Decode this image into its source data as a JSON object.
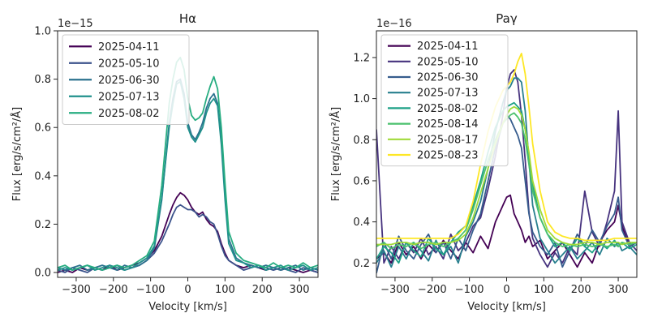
{
  "chart_data": [
    {
      "type": "line",
      "title": "Hα",
      "xlabel": "Velocity [km/s]",
      "ylabel": "Flux [erg/s/cm²/Å]",
      "y_multiplier": "1e−15",
      "xlim": [
        -350,
        350
      ],
      "ylim": [
        -0.02,
        1.0
      ],
      "xticks": [
        -300,
        -200,
        -100,
        0,
        100,
        200,
        300
      ],
      "xtick_labels": [
        "−300",
        "−200",
        "−100",
        "0",
        "100",
        "200",
        "300"
      ],
      "yticks": [
        0.0,
        0.2,
        0.4,
        0.6,
        0.8,
        1.0
      ],
      "ytick_labels": [
        "0.0",
        "0.2",
        "0.4",
        "0.6",
        "0.8",
        "1.0"
      ],
      "legend_position": "top-left",
      "grid": false,
      "x": [
        -350,
        -330,
        -310,
        -290,
        -270,
        -250,
        -230,
        -210,
        -190,
        -170,
        -150,
        -130,
        -110,
        -90,
        -70,
        -50,
        -40,
        -30,
        -20,
        -10,
        0,
        10,
        20,
        30,
        40,
        50,
        60,
        70,
        80,
        90,
        100,
        110,
        130,
        150,
        170,
        190,
        210,
        230,
        250,
        270,
        290,
        310,
        330,
        350
      ],
      "series": [
        {
          "name": "2025-04-11",
          "color": "#440154",
          "values": [
            0.0,
            0.01,
            0.0,
            0.02,
            0.01,
            0.02,
            0.01,
            0.03,
            0.01,
            0.02,
            0.03,
            0.04,
            0.06,
            0.09,
            0.15,
            0.24,
            0.28,
            0.31,
            0.33,
            0.32,
            0.3,
            0.27,
            0.25,
            0.24,
            0.25,
            0.22,
            0.2,
            0.19,
            0.17,
            0.12,
            0.08,
            0.05,
            0.03,
            0.02,
            0.03,
            0.02,
            0.01,
            0.02,
            0.01,
            0.02,
            0.01,
            0.0,
            0.01,
            0.0
          ]
        },
        {
          "name": "2025-05-10",
          "color": "#3b528b",
          "values": [
            0.01,
            0.0,
            0.02,
            0.01,
            0.0,
            0.02,
            0.01,
            0.02,
            0.03,
            0.01,
            0.02,
            0.03,
            0.05,
            0.08,
            0.13,
            0.2,
            0.24,
            0.27,
            0.28,
            0.27,
            0.26,
            0.26,
            0.25,
            0.23,
            0.24,
            0.23,
            0.21,
            0.2,
            0.16,
            0.11,
            0.07,
            0.05,
            0.03,
            0.01,
            0.02,
            0.03,
            0.02,
            0.01,
            0.02,
            0.01,
            0.0,
            0.02,
            0.01,
            0.0
          ]
        },
        {
          "name": "2025-06-30",
          "color": "#2c728e",
          "values": [
            0.02,
            0.01,
            0.02,
            0.03,
            0.01,
            0.02,
            0.03,
            0.02,
            0.01,
            0.03,
            0.02,
            0.03,
            0.05,
            0.1,
            0.3,
            0.62,
            0.72,
            0.79,
            0.8,
            0.74,
            0.62,
            0.57,
            0.55,
            0.58,
            0.62,
            0.68,
            0.72,
            0.74,
            0.7,
            0.55,
            0.32,
            0.14,
            0.06,
            0.04,
            0.03,
            0.02,
            0.03,
            0.02,
            0.01,
            0.02,
            0.03,
            0.01,
            0.02,
            0.01
          ]
        },
        {
          "name": "2025-07-13",
          "color": "#21918c",
          "values": [
            0.01,
            0.02,
            0.01,
            0.02,
            0.03,
            0.01,
            0.02,
            0.03,
            0.02,
            0.01,
            0.02,
            0.04,
            0.06,
            0.11,
            0.31,
            0.6,
            0.7,
            0.78,
            0.79,
            0.72,
            0.6,
            0.56,
            0.54,
            0.57,
            0.6,
            0.66,
            0.7,
            0.72,
            0.69,
            0.53,
            0.3,
            0.12,
            0.05,
            0.04,
            0.02,
            0.03,
            0.01,
            0.02,
            0.03,
            0.01,
            0.02,
            0.03,
            0.01,
            0.02
          ]
        },
        {
          "name": "2025-08-02",
          "color": "#27ad81",
          "values": [
            0.02,
            0.03,
            0.01,
            0.02,
            0.03,
            0.02,
            0.01,
            0.02,
            0.03,
            0.02,
            0.03,
            0.05,
            0.07,
            0.13,
            0.36,
            0.7,
            0.8,
            0.87,
            0.89,
            0.84,
            0.72,
            0.65,
            0.63,
            0.64,
            0.66,
            0.72,
            0.77,
            0.81,
            0.76,
            0.6,
            0.37,
            0.17,
            0.08,
            0.05,
            0.04,
            0.03,
            0.02,
            0.04,
            0.02,
            0.03,
            0.02,
            0.04,
            0.02,
            0.03
          ]
        }
      ]
    },
    {
      "type": "line",
      "title": "Paγ",
      "xlabel": "Velocity [km/s]",
      "ylabel": "Flux [erg/s/cm²/Å]",
      "y_multiplier": "1e−16",
      "xlim": [
        -350,
        350
      ],
      "ylim": [
        0.13,
        1.33
      ],
      "xticks": [
        -300,
        -200,
        -100,
        0,
        100,
        200,
        300
      ],
      "xtick_labels": [
        "−300",
        "−200",
        "−100",
        "0",
        "100",
        "200",
        "300"
      ],
      "yticks": [
        0.2,
        0.4,
        0.6,
        0.8,
        1.0,
        1.2
      ],
      "ytick_labels": [
        "0.2",
        "0.4",
        "0.6",
        "0.8",
        "1.0",
        "1.2"
      ],
      "legend_position": "top-left",
      "grid": false,
      "x": [
        -350,
        -330,
        -310,
        -290,
        -270,
        -250,
        -230,
        -210,
        -190,
        -170,
        -150,
        -130,
        -110,
        -90,
        -70,
        -50,
        -30,
        -10,
        0,
        10,
        20,
        30,
        40,
        50,
        60,
        70,
        90,
        110,
        130,
        150,
        170,
        190,
        210,
        230,
        250,
        270,
        290,
        300,
        310,
        330,
        350
      ],
      "series": [
        {
          "name": "2025-04-11",
          "color": "#440154",
          "values": [
            0.22,
            0.25,
            0.2,
            0.3,
            0.24,
            0.28,
            0.22,
            0.29,
            0.25,
            0.31,
            0.26,
            0.22,
            0.3,
            0.25,
            0.33,
            0.27,
            0.4,
            0.48,
            0.52,
            0.53,
            0.44,
            0.4,
            0.36,
            0.3,
            0.33,
            0.28,
            0.31,
            0.22,
            0.26,
            0.3,
            0.24,
            0.18,
            0.25,
            0.2,
            0.3,
            0.36,
            0.4,
            0.48,
            0.38,
            0.28,
            0.3
          ]
        },
        {
          "name": "2025-05-10",
          "color": "#46327e",
          "values": [
            0.85,
            0.2,
            0.28,
            0.22,
            0.3,
            0.25,
            0.32,
            0.24,
            0.28,
            0.22,
            0.34,
            0.26,
            0.3,
            0.38,
            0.42,
            0.56,
            0.72,
            0.92,
            1.05,
            1.12,
            1.14,
            1.08,
            0.92,
            0.7,
            0.45,
            0.32,
            0.24,
            0.18,
            0.25,
            0.2,
            0.28,
            0.24,
            0.55,
            0.35,
            0.28,
            0.4,
            0.55,
            0.94,
            0.4,
            0.3,
            0.26
          ]
        },
        {
          "name": "2025-06-30",
          "color": "#365c8d",
          "values": [
            0.15,
            0.3,
            0.22,
            0.33,
            0.26,
            0.22,
            0.29,
            0.34,
            0.25,
            0.3,
            0.22,
            0.32,
            0.26,
            0.36,
            0.44,
            0.6,
            0.76,
            0.88,
            0.92,
            0.9,
            0.86,
            0.82,
            0.76,
            0.6,
            0.44,
            0.35,
            0.28,
            0.24,
            0.3,
            0.18,
            0.26,
            0.34,
            0.28,
            0.36,
            0.3,
            0.38,
            0.44,
            0.52,
            0.36,
            0.28,
            0.3
          ]
        },
        {
          "name": "2025-07-13",
          "color": "#277f8e",
          "values": [
            0.2,
            0.26,
            0.18,
            0.28,
            0.22,
            0.3,
            0.26,
            0.21,
            0.31,
            0.24,
            0.28,
            0.2,
            0.33,
            0.4,
            0.5,
            0.66,
            0.84,
            0.98,
            1.04,
            1.06,
            1.1,
            1.1,
            1.08,
            0.94,
            0.7,
            0.48,
            0.32,
            0.26,
            0.2,
            0.24,
            0.28,
            0.22,
            0.26,
            0.3,
            0.24,
            0.32,
            0.28,
            0.3,
            0.26,
            0.28,
            0.24
          ]
        },
        {
          "name": "2025-08-02",
          "color": "#1fa187",
          "values": [
            0.22,
            0.28,
            0.25,
            0.2,
            0.3,
            0.26,
            0.23,
            0.32,
            0.27,
            0.24,
            0.3,
            0.35,
            0.38,
            0.48,
            0.6,
            0.74,
            0.86,
            0.94,
            0.96,
            0.97,
            0.98,
            0.96,
            0.94,
            0.85,
            0.72,
            0.58,
            0.42,
            0.34,
            0.28,
            0.3,
            0.26,
            0.32,
            0.28,
            0.25,
            0.3,
            0.27,
            0.31,
            0.28,
            0.3,
            0.27,
            0.29
          ]
        },
        {
          "name": "2025-08-14",
          "color": "#4ac16d",
          "values": [
            0.28,
            0.3,
            0.27,
            0.29,
            0.28,
            0.3,
            0.27,
            0.29,
            0.3,
            0.28,
            0.3,
            0.32,
            0.36,
            0.46,
            0.58,
            0.7,
            0.8,
            0.88,
            0.9,
            0.92,
            0.93,
            0.91,
            0.88,
            0.8,
            0.68,
            0.55,
            0.42,
            0.34,
            0.3,
            0.28,
            0.29,
            0.28,
            0.29,
            0.28,
            0.29,
            0.28,
            0.29,
            0.28,
            0.3,
            0.29,
            0.3
          ]
        },
        {
          "name": "2025-08-17",
          "color": "#a0da39",
          "values": [
            0.29,
            0.29,
            0.29,
            0.3,
            0.3,
            0.29,
            0.3,
            0.3,
            0.29,
            0.3,
            0.3,
            0.31,
            0.34,
            0.42,
            0.54,
            0.66,
            0.78,
            0.88,
            0.92,
            0.95,
            0.96,
            0.95,
            0.92,
            0.85,
            0.74,
            0.6,
            0.46,
            0.36,
            0.32,
            0.3,
            0.29,
            0.29,
            0.3,
            0.3,
            0.29,
            0.3,
            0.3,
            0.3,
            0.29,
            0.3,
            0.3
          ]
        },
        {
          "name": "2025-08-23",
          "color": "#fde725",
          "values": [
            0.32,
            0.32,
            0.32,
            0.32,
            0.32,
            0.32,
            0.32,
            0.32,
            0.32,
            0.32,
            0.32,
            0.34,
            0.38,
            0.5,
            0.68,
            0.84,
            0.96,
            1.04,
            1.06,
            1.08,
            1.12,
            1.18,
            1.22,
            1.12,
            0.96,
            0.78,
            0.55,
            0.4,
            0.35,
            0.33,
            0.32,
            0.32,
            0.31,
            0.31,
            0.31,
            0.31,
            0.32,
            0.32,
            0.32,
            0.32,
            0.32
          ]
        }
      ]
    }
  ]
}
